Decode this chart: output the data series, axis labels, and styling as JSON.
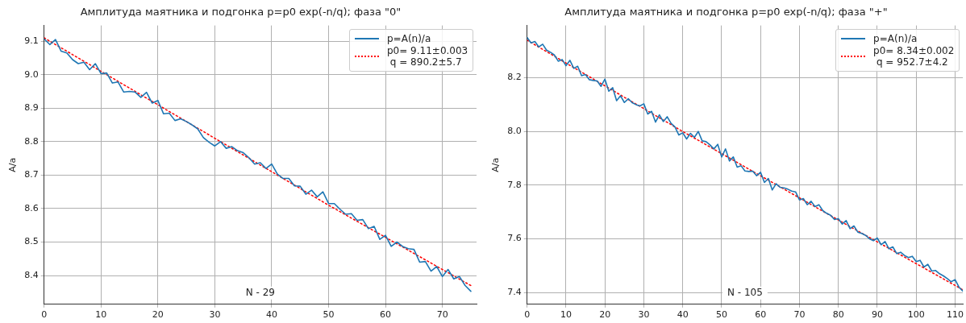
{
  "chart_data": [
    {
      "type": "line",
      "title": "Амплитуда маятника и подгонка p=p0 exp(-n/q); фаза \"0\"",
      "ylabel": "A/a",
      "xlim": [
        0,
        76
      ],
      "ylim": [
        8.314,
        9.147
      ],
      "xticks": [
        0,
        10,
        20,
        30,
        40,
        50,
        60,
        70
      ],
      "yticks": [
        8.4,
        8.5,
        8.6,
        8.7,
        8.8,
        8.9,
        {
          "value": 9,
          "label": "9.0"
        },
        9.1
      ],
      "grid": true,
      "legend": "top right",
      "marker": "none",
      "annotations": [
        "N - 29"
      ],
      "series": [
        {
          "name": "p=A(n)/a",
          "color": "#1f77b4",
          "line_style": "solid",
          "x": [
            0,
            1,
            2,
            3,
            4,
            5,
            6,
            7,
            8,
            9,
            10,
            11,
            12,
            13,
            14,
            15,
            16,
            17,
            18,
            19,
            20,
            21,
            22,
            23,
            24,
            25,
            26,
            27,
            28,
            29,
            30,
            31,
            32,
            33,
            34,
            35,
            36,
            37,
            38,
            39,
            40,
            41,
            42,
            43,
            44,
            45,
            46,
            47,
            48,
            49,
            50,
            51,
            52,
            53,
            54,
            55,
            56,
            57,
            58,
            59,
            60,
            61,
            62,
            63,
            64,
            65,
            66,
            67,
            68,
            69,
            70,
            71,
            72,
            73,
            74,
            75
          ],
          "values": [
            9.107,
            9.09,
            9.105,
            9.07,
            9.065,
            9.045,
            9.033,
            9.037,
            9.015,
            9.033,
            9.003,
            9.005,
            8.975,
            8.978,
            8.948,
            8.95,
            8.948,
            8.932,
            8.947,
            8.915,
            8.923,
            8.883,
            8.885,
            8.863,
            8.868,
            8.86,
            8.85,
            8.838,
            8.812,
            8.798,
            8.787,
            8.8,
            8.78,
            8.785,
            8.773,
            8.767,
            8.752,
            8.733,
            8.737,
            8.72,
            8.733,
            8.703,
            8.69,
            8.69,
            8.668,
            8.667,
            8.643,
            8.655,
            8.635,
            8.65,
            8.615,
            8.615,
            8.598,
            8.583,
            8.585,
            8.565,
            8.567,
            8.54,
            8.547,
            8.508,
            8.52,
            8.487,
            8.5,
            8.487,
            8.48,
            8.478,
            8.44,
            8.442,
            8.413,
            8.427,
            8.397,
            8.418,
            8.39,
            8.397,
            8.37,
            8.353
          ]
        },
        {
          "name": "p0= 9.11±0.003\n q = 890.2±5.7",
          "color": "#ff0000",
          "line_style": "dotted",
          "x": [
            0,
            25,
            50,
            75
          ],
          "values": [
            9.11,
            8.86,
            8.61,
            8.37
          ]
        }
      ]
    },
    {
      "type": "line",
      "title": "Амплитуда маятника и подгонка p=p0 exp(-n/q); фаза \"+\"",
      "ylabel": "A/a",
      "xlim": [
        0,
        112
      ],
      "ylim": [
        7.356,
        8.395
      ],
      "xticks": [
        0,
        10,
        20,
        30,
        40,
        50,
        60,
        70,
        80,
        90,
        100,
        110
      ],
      "yticks": [
        7.4,
        7.6,
        7.8,
        {
          "value": 8,
          "label": "8.0"
        },
        8.2
      ],
      "grid": true,
      "legend": "top right",
      "marker": "none",
      "annotations": [
        "N - 105"
      ],
      "series": [
        {
          "name": "p=A(n)/a",
          "color": "#1f77b4",
          "line_style": "solid",
          "x": [
            0,
            1,
            2,
            3,
            4,
            5,
            6,
            7,
            8,
            9,
            10,
            11,
            12,
            13,
            14,
            15,
            16,
            17,
            18,
            19,
            20,
            21,
            22,
            23,
            24,
            25,
            26,
            27,
            28,
            29,
            30,
            31,
            32,
            33,
            34,
            35,
            36,
            37,
            38,
            39,
            40,
            41,
            42,
            43,
            44,
            45,
            46,
            47,
            48,
            49,
            50,
            51,
            52,
            53,
            54,
            55,
            56,
            57,
            58,
            59,
            60,
            61,
            62,
            63,
            64,
            65,
            66,
            67,
            68,
            69,
            70,
            71,
            72,
            73,
            74,
            75,
            76,
            77,
            78,
            79,
            80,
            81,
            82,
            83,
            84,
            85,
            86,
            87,
            88,
            89,
            90,
            91,
            92,
            93,
            94,
            95,
            96,
            97,
            98,
            99,
            100,
            101,
            102,
            103,
            104,
            105,
            106,
            107,
            108,
            109,
            110,
            111,
            112
          ],
          "values": [
            8.35,
            8.33,
            8.335,
            8.315,
            8.325,
            8.303,
            8.295,
            8.285,
            8.262,
            8.268,
            8.245,
            8.265,
            8.235,
            8.243,
            8.208,
            8.212,
            8.193,
            8.19,
            8.188,
            8.168,
            8.195,
            8.15,
            8.163,
            8.115,
            8.133,
            8.108,
            8.122,
            8.107,
            8.1,
            8.095,
            8.103,
            8.065,
            8.075,
            8.035,
            8.062,
            8.037,
            8.055,
            8.03,
            8.017,
            7.987,
            7.995,
            7.972,
            7.993,
            7.978,
            8.0,
            7.965,
            7.962,
            7.95,
            7.935,
            7.952,
            7.905,
            7.935,
            7.89,
            7.905,
            7.867,
            7.872,
            7.853,
            7.851,
            7.852,
            7.835,
            7.848,
            7.81,
            7.825,
            7.782,
            7.805,
            7.792,
            7.79,
            7.785,
            7.778,
            7.775,
            7.745,
            7.75,
            7.727,
            7.74,
            7.72,
            7.727,
            7.705,
            7.695,
            7.688,
            7.672,
            7.675,
            7.655,
            7.668,
            7.638,
            7.648,
            7.625,
            7.62,
            7.613,
            7.6,
            7.593,
            7.603,
            7.578,
            7.59,
            7.563,
            7.57,
            7.545,
            7.55,
            7.538,
            7.53,
            7.535,
            7.515,
            7.52,
            7.495,
            7.505,
            7.48,
            7.482,
            7.47,
            7.462,
            7.452,
            7.44,
            7.448,
            7.42,
            7.405
          ]
        },
        {
          "name": "p0= 8.34±0.002\n q = 952.7±4.2",
          "color": "#ff0000",
          "line_style": "dotted",
          "x": [
            0,
            40,
            80,
            112
          ],
          "values": [
            8.34,
            8.0,
            7.67,
            7.41
          ]
        }
      ]
    }
  ]
}
